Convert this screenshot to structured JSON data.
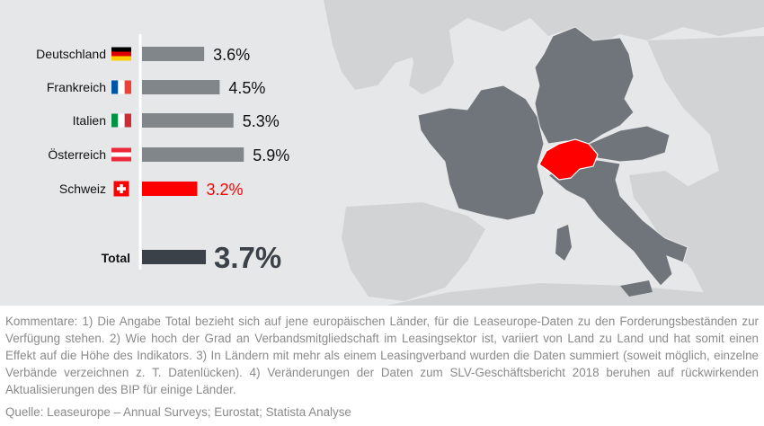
{
  "chart_data": {
    "type": "bar",
    "orientation": "horizontal",
    "categories": [
      "Deutschland",
      "Frankreich",
      "Italien",
      "Österreich",
      "Schweiz"
    ],
    "values": [
      3.6,
      4.5,
      5.3,
      5.9,
      3.2
    ],
    "value_labels": [
      "3.6%",
      "4.5%",
      "5.3%",
      "5.9%",
      "3.2%"
    ],
    "flags": [
      "germany-flag",
      "france-flag",
      "italy-flag",
      "austria-flag",
      "switzerland-flag"
    ],
    "highlight_category": "Schweiz",
    "total": {
      "label": "Total",
      "value": 3.7,
      "value_label": "3.7%"
    },
    "colors": {
      "bar": "#808689",
      "highlight": "#ff0000",
      "total": "#3a4148",
      "map_land": "#d2d3d5",
      "map_region": "#6f757a",
      "map_switzerland": "#ff0000",
      "background": "#e6e7e8"
    },
    "grid": false
  },
  "footer": {
    "notes": "Kommentare: 1) Die Angabe Total bezieht sich auf jene europäischen Länder, für die Leaseurope-Daten zu den Forderungsbeständen zur Verfügung stehen. 2) Wie hoch der Grad an Verbandsmitgliedschaft im Leasingsektor ist, variiert von Land zu Land und hat somit einen Effekt auf die Höhe des Indikators. 3) In Ländern mit mehr als einem Leasingverband wurden die Daten summiert (soweit möglich, einzelne Verbände verzeichnen z. T. Datenlücken). 4) Veränderungen der Daten zum SLV-Geschäftsbericht 2018 beruhen auf rückwirkenden Aktualisierungen des BIP für einige Länder.",
    "source": "Quelle: Leaseurope – Annual Surveys; Eurostat; Statista Analyse"
  }
}
